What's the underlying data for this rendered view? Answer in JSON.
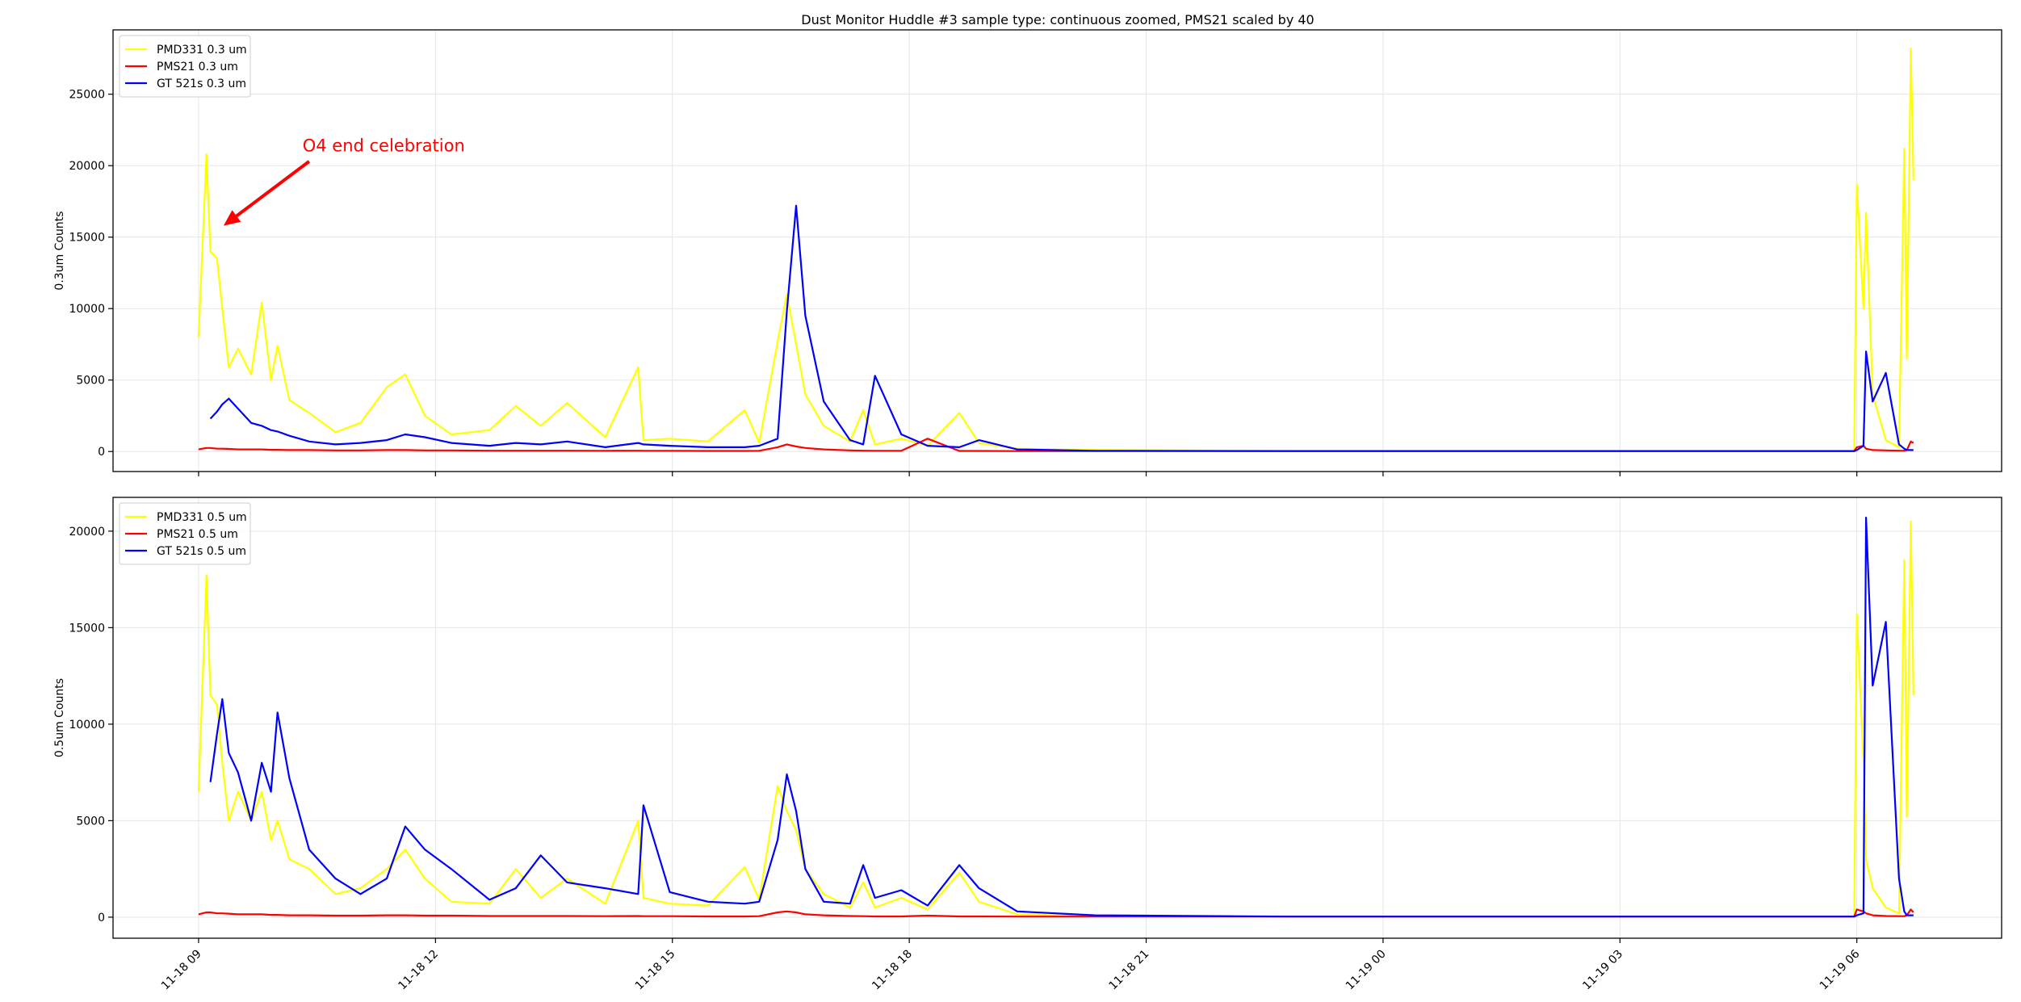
{
  "chart_data": {
    "type": "line",
    "title": "Dust Monitor Huddle #3 sample type: continuous zoomed, PMS21 scaled by 40",
    "grid": true,
    "xlim": [
      "11-18 07:55",
      "11-19 07:50"
    ],
    "x_ticks": [
      "11-18 09",
      "11-18 12",
      "11-18 15",
      "11-18 18",
      "11-18 21",
      "11-19 00",
      "11-19 03",
      "11-19 06"
    ],
    "x": [
      "11-18 09:00",
      "11-18 09:06",
      "11-18 09:09",
      "11-18 09:14",
      "11-18 09:18",
      "11-18 09:23",
      "11-18 09:30",
      "11-18 09:40",
      "11-18 09:48",
      "11-18 09:55",
      "11-18 10:00",
      "11-18 10:09",
      "11-18 10:24",
      "11-18 10:44",
      "11-18 11:03",
      "11-18 11:23",
      "11-18 11:37",
      "11-18 11:52",
      "11-18 12:12",
      "11-18 12:41",
      "11-18 13:01",
      "11-18 13:20",
      "11-18 13:40",
      "11-18 14:09",
      "11-18 14:34",
      "11-18 14:38",
      "11-18 14:58",
      "11-18 15:27",
      "11-18 15:55",
      "11-18 16:06",
      "11-18 16:20",
      "11-18 16:27",
      "11-18 16:34",
      "11-18 16:41",
      "11-18 16:55",
      "11-18 17:15",
      "11-18 17:25",
      "11-18 17:34",
      "11-18 17:54",
      "11-18 18:14",
      "11-18 18:38",
      "11-18 18:53",
      "11-18 19:22",
      "11-18 20:21",
      "11-18 22:47",
      "11-19 05:58",
      "11-19 06:00",
      "11-19 06:05",
      "11-19 06:07",
      "11-19 06:12",
      "11-19 06:22",
      "11-19 06:32",
      "11-19 06:36",
      "11-19 06:38",
      "11-19 06:41",
      "11-19 06:43"
    ],
    "panels": [
      {
        "ylabel": "0.3um Counts",
        "ylim": [
          -1400,
          29500
        ],
        "y_ticks": [
          0,
          5000,
          10000,
          15000,
          20000,
          25000
        ],
        "legend": "top-left",
        "series": [
          {
            "name": "PMD331 0.3 um",
            "color": "#ffff00",
            "values": [
              8000,
              20800,
              14000,
              13500,
              10000,
              5900,
              7200,
              5400,
              10400,
              5000,
              7400,
              3600,
              2700,
              1350,
              2000,
              4500,
              5400,
              2500,
              1200,
              1500,
              3200,
              1800,
              3400,
              1000,
              5900,
              800,
              900,
              700,
              2900,
              600,
              7700,
              11000,
              7500,
              4000,
              1800,
              700,
              2900,
              500,
              900,
              400,
              2700,
              600,
              200,
              100,
              50,
              50,
              18700,
              10000,
              16700,
              4000,
              800,
              300,
              21200,
              6500,
              28200,
              19000
            ]
          },
          {
            "name": "PMS21 0.3 um",
            "color": "#ff0000",
            "values": [
              150,
              250,
              250,
              200,
              200,
              180,
              150,
              150,
              150,
              120,
              120,
              100,
              100,
              80,
              80,
              100,
              100,
              80,
              80,
              60,
              60,
              60,
              60,
              50,
              60,
              50,
              50,
              40,
              40,
              50,
              300,
              500,
              350,
              250,
              150,
              80,
              60,
              50,
              50,
              900,
              40,
              40,
              30,
              30,
              30,
              30,
              300,
              400,
              200,
              100,
              80,
              60,
              60,
              100,
              700,
              600
            ]
          },
          {
            "name": "GT 521s 0.3 um",
            "color": "#0000ff",
            "values": [
              null,
              null,
              2300,
              2800,
              3300,
              3700,
              3000,
              2000,
              1800,
              1500,
              1400,
              1100,
              700,
              500,
              600,
              800,
              1200,
              1000,
              600,
              400,
              600,
              500,
              700,
              300,
              600,
              500,
              400,
              300,
              300,
              400,
              900,
              9800,
              17200,
              9500,
              3500,
              800,
              500,
              5300,
              1200,
              400,
              300,
              800,
              150,
              50,
              30,
              30,
              100,
              400,
              7000,
              3500,
              5500,
              500,
              200,
              100,
              100,
              100
            ]
          }
        ],
        "annotation": {
          "text": "O4 end celebration",
          "color": "#ff0000",
          "text_at": [
            "11-18 10:19",
            21000
          ],
          "arrow_from": [
            "11-18 10:24",
            20300
          ],
          "arrow_to": [
            "11-18 09:19",
            15800
          ]
        }
      },
      {
        "ylabel": "0.5um Counts",
        "ylim": [
          -1090,
          21750
        ],
        "y_ticks": [
          0,
          5000,
          10000,
          15000,
          20000
        ],
        "legend": "top-left",
        "series": [
          {
            "name": "PMD331 0.5 um",
            "color": "#ffff00",
            "values": [
              6500,
              17700,
              11500,
              11000,
              8000,
              5000,
              6500,
              5000,
              6500,
              4000,
              5000,
              3000,
              2500,
              1200,
              1500,
              2500,
              3500,
              2000,
              800,
              700,
              2500,
              1000,
              2000,
              700,
              5000,
              1000,
              700,
              600,
              2600,
              900,
              6800,
              5500,
              4500,
              2500,
              1200,
              500,
              1800,
              500,
              1000,
              400,
              2300,
              800,
              150,
              50,
              30,
              30,
              15700,
              8000,
              3000,
              1500,
              500,
              200,
              18500,
              5200,
              20500,
              11500
            ]
          },
          {
            "name": "PMS21 0.5 um",
            "color": "#ff0000",
            "values": [
              150,
              250,
              250,
              200,
              200,
              180,
              150,
              150,
              150,
              120,
              120,
              100,
              100,
              80,
              80,
              100,
              100,
              80,
              80,
              60,
              60,
              60,
              60,
              50,
              60,
              50,
              50,
              40,
              40,
              50,
              250,
              300,
              250,
              150,
              100,
              60,
              50,
              40,
              40,
              80,
              40,
              40,
              30,
              30,
              30,
              30,
              400,
              300,
              200,
              100,
              60,
              50,
              50,
              100,
              400,
              250
            ]
          },
          {
            "name": "GT 521s 0.5 um",
            "color": "#0000ff",
            "values": [
              null,
              null,
              7000,
              9500,
              11300,
              8500,
              7500,
              5000,
              8000,
              6500,
              10600,
              7200,
              3500,
              2000,
              1200,
              2000,
              4700,
              3500,
              2500,
              900,
              1500,
              3200,
              1800,
              1500,
              1200,
              5800,
              1300,
              800,
              700,
              800,
              4000,
              7400,
              5500,
              2500,
              800,
              700,
              2700,
              1000,
              1400,
              600,
              2700,
              1500,
              300,
              100,
              30,
              30,
              100,
              200,
              20700,
              12000,
              15300,
              2000,
              300,
              100,
              100,
              100
            ]
          }
        ]
      }
    ]
  }
}
